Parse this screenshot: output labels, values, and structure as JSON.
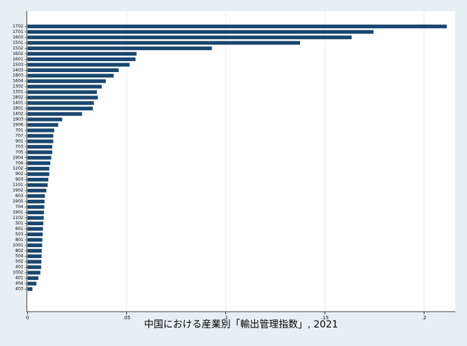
{
  "chart_data": {
    "type": "bar",
    "orientation": "horizontal",
    "title": "",
    "xlabel": "中国における産業別「輸出管理指数」, 2021",
    "ylabel": "",
    "categories": [
      "1702",
      "1701",
      "1603",
      "1501",
      "1502",
      "1602",
      "1601",
      "1503",
      "1403",
      "1803",
      "1604",
      "1302",
      "1301",
      "1802",
      "1401",
      "1801",
      "1402",
      "1903",
      "1906",
      "701",
      "707",
      "901",
      "703",
      "705",
      "1904",
      "706",
      "1202",
      "902",
      "903",
      "1101",
      "1902",
      "603",
      "1905",
      "704",
      "1901",
      "1102",
      "501",
      "601",
      "503",
      "801",
      "1001",
      "802",
      "504",
      "502",
      "402",
      "1002",
      "401",
      "404",
      "403"
    ],
    "values": [
      0.2115,
      0.1745,
      0.1635,
      0.1375,
      0.093,
      0.055,
      0.0545,
      0.0515,
      0.046,
      0.0435,
      0.0395,
      0.0375,
      0.035,
      0.0355,
      0.0335,
      0.033,
      0.0275,
      0.0175,
      0.0155,
      0.0135,
      0.013,
      0.013,
      0.0125,
      0.0125,
      0.012,
      0.0115,
      0.011,
      0.011,
      0.0105,
      0.0102,
      0.0095,
      0.0088,
      0.0086,
      0.0085,
      0.0083,
      0.0082,
      0.008,
      0.0078,
      0.0077,
      0.0075,
      0.0074,
      0.0072,
      0.0071,
      0.007,
      0.0069,
      0.0065,
      0.0055,
      0.0045,
      0.0025
    ],
    "xlim": [
      0,
      0.22
    ],
    "xticks": [
      "0",
      ".05",
      ".1",
      ".15",
      ".2"
    ],
    "xtick_values": [
      0,
      0.05,
      0.1,
      0.15,
      0.2
    ],
    "grid": "vertical",
    "colors": {
      "bar": "#1a476f",
      "background": "#e8eff3",
      "plot_background": "#ffffff",
      "grid": "#e6ecf0",
      "axis": "#000000"
    }
  }
}
